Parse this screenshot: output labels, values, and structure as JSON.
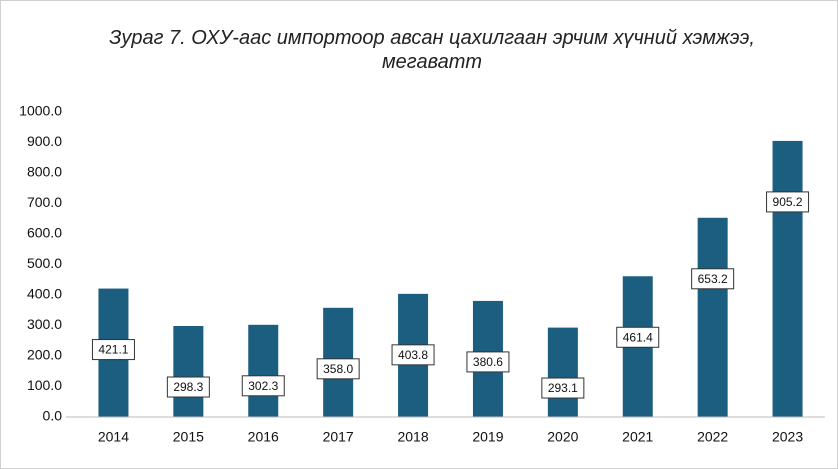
{
  "chart_data": {
    "type": "bar",
    "title": "Зураг 7. ОХУ-аас импортоор авсан цахилгаан эрчим хүчний хэмжээ, мегаватт",
    "categories": [
      "2014",
      "2015",
      "2016",
      "2017",
      "2018",
      "2019",
      "2020",
      "2021",
      "2022",
      "2023"
    ],
    "values": [
      421.1,
      298.3,
      302.3,
      358.0,
      403.8,
      380.6,
      293.1,
      461.4,
      653.2,
      905.2
    ],
    "value_labels": [
      "421.1",
      "298.3",
      "302.3",
      "358.0",
      "403.8",
      "380.6",
      "293.1",
      "461.4",
      "653.2",
      "905.2"
    ],
    "color": "#1b5e80",
    "ylim": [
      0,
      1000
    ],
    "yticks": [
      {
        "value": 0,
        "label": "0.0"
      },
      {
        "value": 100,
        "label": "100.0"
      },
      {
        "value": 200,
        "label": "200.0"
      },
      {
        "value": 300,
        "label": "300.0"
      },
      {
        "value": 400,
        "label": "400.0"
      },
      {
        "value": 500,
        "label": "500.0"
      },
      {
        "value": 600,
        "label": "600.0"
      },
      {
        "value": 700,
        "label": "700.0"
      },
      {
        "value": 800,
        "label": "800.0"
      },
      {
        "value": 900,
        "label": "900.0"
      },
      {
        "value": 1000,
        "label": "1000.0"
      }
    ],
    "grid": false
  }
}
